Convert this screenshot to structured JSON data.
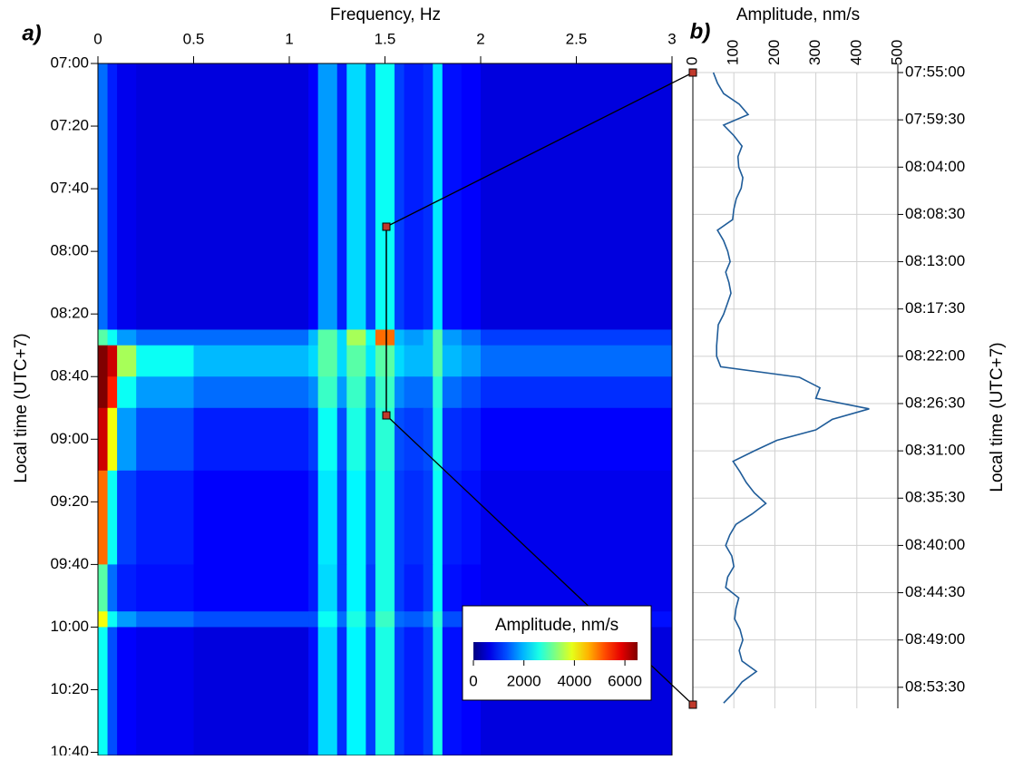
{
  "chart_data": [
    {
      "type": "heatmap",
      "panel_label": "a)",
      "x_label": "Frequency, Hz",
      "y_label": "Local time (UTC+7)",
      "xlim": [
        0,
        3
      ],
      "xticks": [
        0,
        0.5,
        1,
        1.5,
        2,
        2.5,
        3
      ],
      "ylim": [
        "07:00",
        "10:41"
      ],
      "yticks": [
        "07:00",
        "07:20",
        "07:40",
        "08:00",
        "08:20",
        "08:40",
        "09:00",
        "09:20",
        "09:40",
        "10:00",
        "10:20",
        "10:40"
      ],
      "x_bins": [
        0,
        0.05,
        0.1,
        0.2,
        0.5,
        1.1,
        1.15,
        1.25,
        1.3,
        1.4,
        1.45,
        1.55,
        1.6,
        1.7,
        1.75,
        1.8,
        1.9,
        2.0,
        3.0
      ],
      "y_bins": [
        "07:00",
        "08:25",
        "08:30",
        "08:40",
        "08:50",
        "09:10",
        "09:40",
        "09:55",
        "10:00",
        "10:41"
      ],
      "values": [
        [
          1500,
          1000,
          700,
          600,
          600,
          800,
          1800,
          1000,
          2200,
          1200,
          2500,
          1200,
          1000,
          1100,
          2300,
          900,
          800,
          600
        ],
        [
          3000,
          2500,
          1800,
          1500,
          1500,
          2000,
          3000,
          2200,
          3500,
          2500,
          5000,
          2000,
          1800,
          2000,
          3000,
          1800,
          1500,
          1200
        ],
        [
          6500,
          6000,
          3500,
          2500,
          2000,
          2200,
          3000,
          2200,
          3000,
          2300,
          3000,
          2200,
          2000,
          2000,
          3000,
          2000,
          1800,
          1500
        ],
        [
          6500,
          5500,
          2500,
          1800,
          1500,
          1700,
          2800,
          1800,
          2800,
          1700,
          2800,
          1700,
          1500,
          1500,
          2700,
          1500,
          1300,
          1100
        ],
        [
          6000,
          4000,
          1800,
          1300,
          1000,
          1200,
          2500,
          1300,
          2600,
          1400,
          2700,
          1300,
          1200,
          1300,
          2600,
          1100,
          1000,
          800
        ],
        [
          5000,
          2500,
          1200,
          1000,
          800,
          1000,
          2300,
          1200,
          2400,
          1300,
          2600,
          1200,
          1100,
          1200,
          2500,
          1000,
          900,
          700
        ],
        [
          3000,
          1500,
          1000,
          900,
          800,
          1000,
          2200,
          1200,
          2400,
          1200,
          2600,
          1200,
          1000,
          1200,
          2500,
          900,
          800,
          700
        ],
        [
          4000,
          2500,
          1800,
          1500,
          1300,
          1300,
          2500,
          1500,
          2600,
          1500,
          2800,
          1500,
          1400,
          1600,
          2700,
          1300,
          1100,
          900
        ],
        [
          2500,
          1300,
          800,
          700,
          600,
          900,
          2200,
          1100,
          2400,
          1200,
          2600,
          1200,
          1000,
          1200,
          2600,
          900,
          800,
          600
        ]
      ],
      "colorbar": {
        "title": "Amplitude, nm/s",
        "lim": [
          0,
          6500
        ],
        "ticks": [
          0,
          2000,
          4000,
          6000
        ],
        "colormap": "jet"
      }
    },
    {
      "type": "line",
      "panel_label": "b)",
      "x_label": "Amplitude, nm/s",
      "y_label": "Local time (UTC+7)",
      "xlim": [
        0,
        500
      ],
      "xticks": [
        0,
        100,
        200,
        300,
        400,
        500
      ],
      "ylim": [
        "07:55:00",
        "08:55:30"
      ],
      "yticks": [
        "07:55:00",
        "07:59:30",
        "08:04:00",
        "08:08:30",
        "08:13:00",
        "08:17:30",
        "08:22:00",
        "08:26:30",
        "08:31:00",
        "08:35:30",
        "08:40:00",
        "08:44:30",
        "08:49:00",
        "08:53:30"
      ],
      "grid": true,
      "color": "#1f5c99",
      "y": [
        "07:55",
        "07:56",
        "07:57",
        "07:58",
        "07:59",
        "08:00",
        "08:01",
        "08:02",
        "08:03",
        "08:04",
        "08:05",
        "08:06",
        "08:07",
        "08:08",
        "08:09",
        "08:10",
        "08:11",
        "08:12",
        "08:13",
        "08:14",
        "08:15",
        "08:16",
        "08:17",
        "08:18",
        "08:19",
        "08:20",
        "08:21",
        "08:22",
        "08:23",
        "08:24",
        "08:25",
        "08:26",
        "08:27",
        "08:28",
        "08:29",
        "08:30",
        "08:31",
        "08:32",
        "08:33",
        "08:34",
        "08:35",
        "08:36",
        "08:37",
        "08:38",
        "08:39",
        "08:40",
        "08:41",
        "08:42",
        "08:43",
        "08:44",
        "08:45",
        "08:46",
        "08:47",
        "08:48",
        "08:49",
        "08:50",
        "08:51",
        "08:52",
        "08:53",
        "08:54",
        "08:55"
      ],
      "values": [
        50,
        60,
        75,
        113,
        135,
        75,
        100,
        120,
        110,
        112,
        122,
        118,
        106,
        100,
        97,
        60,
        75,
        85,
        91,
        80,
        88,
        93,
        84,
        75,
        62,
        60,
        58,
        58,
        68,
        260,
        310,
        300,
        430,
        340,
        300,
        205,
        150,
        98,
        115,
        130,
        150,
        178,
        145,
        105,
        90,
        80,
        95,
        100,
        85,
        80,
        112,
        105,
        102,
        115,
        122,
        113,
        120,
        155,
        120,
        100,
        75
      ]
    }
  ]
}
